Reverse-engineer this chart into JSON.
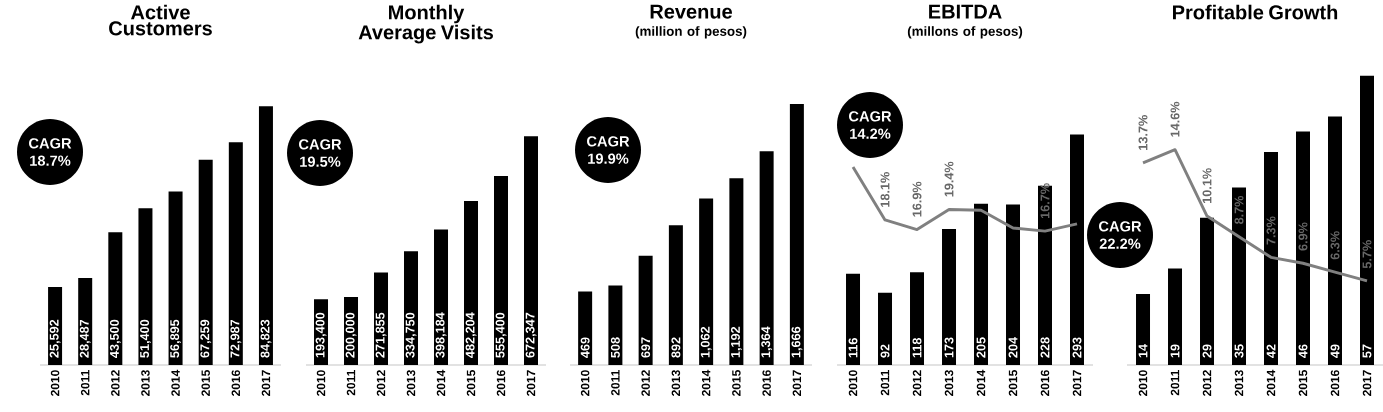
{
  "chart_data": [
    {
      "type": "bar",
      "title": "Active Customers",
      "categories": [
        "2010",
        "2011",
        "2012",
        "2013",
        "2014",
        "2015",
        "2016",
        "2017"
      ],
      "values": [
        25592,
        28487,
        43500,
        51400,
        56895,
        67259,
        72987,
        84823
      ],
      "value_labels": [
        "25,592",
        "28,487",
        "43,500",
        "51,400",
        "56,895",
        "67,259",
        "72,987",
        "84,823"
      ],
      "color": "#000000",
      "tick_labels": "x",
      "annotations": [
        "CAGR 18.7%"
      ]
    },
    {
      "type": "bar",
      "title": "Monthly Average Visits",
      "categories": [
        "2010",
        "2011",
        "2012",
        "2013",
        "2014",
        "2015",
        "2016",
        "2017"
      ],
      "values": [
        193400,
        200000,
        271855,
        334750,
        398184,
        482204,
        555400,
        672347
      ],
      "value_labels": [
        "193,400",
        "200,000",
        "271,855",
        "334,750",
        "398,184",
        "482,204",
        "555,400",
        "672,347"
      ],
      "color": "#000000",
      "tick_labels": "x",
      "annotations": [
        "CAGR 19.5%"
      ]
    },
    {
      "type": "bar",
      "title": "Revenue",
      "subtitle": "(million  of pesos)",
      "categories": [
        "2010",
        "2011",
        "2012",
        "2013",
        "2014",
        "2015",
        "2016",
        "2017"
      ],
      "values": [
        469,
        508,
        697,
        892,
        1062,
        1192,
        1364,
        1666
      ],
      "value_labels": [
        "469",
        "508",
        "697",
        "892",
        "1,062",
        "1,192",
        "1,364",
        "1,666"
      ],
      "color": "#000000",
      "tick_labels": "x",
      "annotations": [
        "CAGR 19.9%"
      ]
    },
    {
      "type": "bar",
      "title": "EBITDA",
      "subtitle": "(millons of pesos)",
      "categories": [
        "2010",
        "2011",
        "2012",
        "2013",
        "2014",
        "2015",
        "2016",
        "2017"
      ],
      "series": [
        {
          "type": "bar",
          "color": "#000000",
          "values": [
            116,
            92,
            118,
            173,
            205,
            204,
            228,
            293
          ],
          "value_labels": [
            "116",
            "92",
            "118",
            "173",
            "205",
            "204",
            "228",
            "293"
          ]
        },
        {
          "type": "line",
          "axis": "y2",
          "color": "#808080",
          "values": [
            24.7,
            18.1,
            16.9,
            19.4,
            19.3,
            17.1,
            16.7,
            17.6
          ],
          "value_labels": [
            null,
            "18.1%",
            "16.9%",
            "19.4%",
            null,
            null,
            "16.7%",
            null
          ]
        }
      ],
      "tick_labels": "x",
      "annotations": [
        "CAGR 14.2%"
      ]
    },
    {
      "type": "bar",
      "title": "Profitable Growth",
      "categories": [
        "2010",
        "2011",
        "2012",
        "2013",
        "2014",
        "2015",
        "2016",
        "2017"
      ],
      "series": [
        {
          "type": "bar",
          "color": "#000000",
          "values": [
            14,
            19,
            29,
            35,
            42,
            46,
            49,
            57
          ],
          "value_labels": [
            "14",
            "19",
            "29",
            "35",
            "42",
            "46",
            "49",
            "57"
          ]
        },
        {
          "type": "line",
          "axis": "y2",
          "color": "#808080",
          "values": [
            13.7,
            14.6,
            10.1,
            8.7,
            7.3,
            6.9,
            6.3,
            5.7
          ],
          "value_labels": [
            "13.7%",
            "14.6%",
            "10.1%",
            "8.7%",
            "7.3%",
            "6.9%",
            "6.3%",
            "5.7%"
          ]
        }
      ],
      "tick_labels": "x",
      "annotations": [
        "CAGR 22.2%"
      ]
    }
  ]
}
